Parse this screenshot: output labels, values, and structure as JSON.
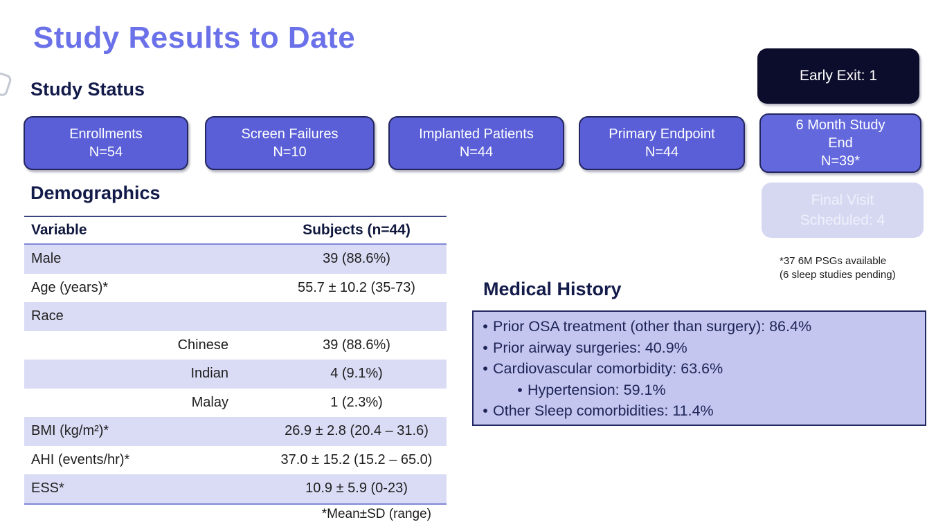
{
  "page": {
    "title": "Study Results to Date"
  },
  "study_status": {
    "heading": "Study Status",
    "boxes": [
      {
        "label": "Enrollments\nN=54"
      },
      {
        "label": "Screen Failures\nN=10"
      },
      {
        "label": "Implanted Patients\nN=44"
      },
      {
        "label": "Primary Endpoint\nN=44"
      },
      {
        "label": "6 Month Study\nEnd\nN=39*"
      }
    ],
    "early_exit": "Early Exit: 1",
    "final_visit": "Final Visit\nScheduled: 4",
    "psg_footnote": "*37 6M PSGs available\n(6 sleep studies pending)"
  },
  "demographics": {
    "heading": "Demographics",
    "columns": [
      "Variable",
      "Subjects (n=44)"
    ],
    "rows": [
      {
        "label": "Male",
        "value": "39 (88.6%)",
        "indent": false
      },
      {
        "label": "Age (years)*",
        "value": "55.7 ± 10.2 (35-73)",
        "indent": false
      },
      {
        "label": "Race",
        "value": "",
        "indent": false
      },
      {
        "label": "Chinese",
        "value": "39 (88.6%)",
        "indent": true
      },
      {
        "label": "Indian",
        "value": "4 (9.1%)",
        "indent": true
      },
      {
        "label": "Malay",
        "value": "1 (2.3%)",
        "indent": true
      },
      {
        "label": "BMI (kg/m²)*",
        "value": "26.9 ± 2.8 (20.4 – 31.6)",
        "indent": false
      },
      {
        "label": "AHI (events/hr)*",
        "value": "37.0 ± 15.2 (15.2 – 65.0)",
        "indent": false
      },
      {
        "label": "ESS*",
        "value": "10.9 ± 5.9 (0-23)",
        "indent": false
      }
    ],
    "footnote": "*Mean±SD (range)"
  },
  "medical_history": {
    "heading": "Medical History",
    "bullets": [
      {
        "marker": "•",
        "text": "Prior OSA treatment (other than surgery): 86.4%",
        "sub": false
      },
      {
        "marker": "•",
        "text": "Prior airway surgeries: 40.9%",
        "sub": false
      },
      {
        "marker": "•",
        "text": "Cardiovascular comorbidity: 63.6%",
        "sub": false
      },
      {
        "marker": "•",
        "text": "Hypertension: 59.1%",
        "sub": true
      },
      {
        "marker": "•",
        "text": "Other Sleep comorbidities: 11.4%",
        "sub": false
      }
    ]
  },
  "colors": {
    "title": "#6b71e8",
    "heading": "#131b4a",
    "status_box_fill": "#5a5fd7",
    "status_box_border": "#23265f",
    "early_exit_fill": "#0c0d2c",
    "final_visit_fill": "#d6d8f1",
    "table_alt_row": "#dadcf5",
    "medical_panel_fill": "#c4c6f0"
  }
}
